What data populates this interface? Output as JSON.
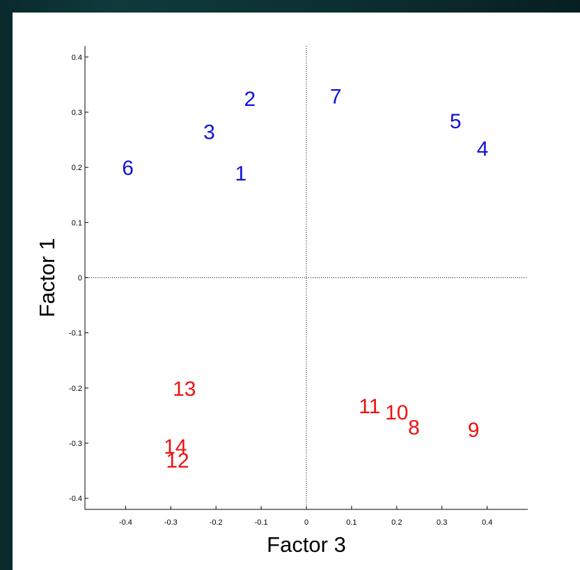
{
  "chart_data": {
    "type": "scatter",
    "title": "",
    "xlabel": "Factor 3",
    "ylabel": "Factor 1",
    "xlim": [
      -0.49,
      0.49
    ],
    "ylim": [
      -0.42,
      0.42
    ],
    "grid": false,
    "x_ticks": [
      -0.4,
      -0.3,
      -0.2,
      -0.1,
      0,
      0.1,
      0.2,
      0.3,
      0.4
    ],
    "x_tick_labels": [
      "-0.4",
      "-0.3",
      "-0.2",
      "-0.1",
      "0",
      "0.1",
      "0.2",
      "0.3",
      "0.4"
    ],
    "y_ticks": [
      -0.4,
      -0.3,
      -0.2,
      -0.1,
      0,
      0.1,
      0.2,
      0.3,
      0.4
    ],
    "y_tick_labels": [
      "-0.4",
      "-0.3",
      "-0.2",
      "-0.1",
      "0",
      "0.1",
      "0.2",
      "0.3",
      "0.4"
    ],
    "reference_lines": {
      "x": 0,
      "y": 0,
      "style": "dotted"
    },
    "series": [
      {
        "color": "#1010dd",
        "points": [
          {
            "label": "1",
            "x": -0.145,
            "y": 0.19
          },
          {
            "label": "2",
            "x": -0.125,
            "y": 0.325
          },
          {
            "label": "3",
            "x": -0.215,
            "y": 0.265
          },
          {
            "label": "4",
            "x": 0.39,
            "y": 0.235
          },
          {
            "label": "5",
            "x": 0.33,
            "y": 0.285
          },
          {
            "label": "6",
            "x": -0.395,
            "y": 0.2
          },
          {
            "label": "7",
            "x": 0.065,
            "y": 0.33
          }
        ]
      },
      {
        "color": "#ee1111",
        "points": [
          {
            "label": "8",
            "x": 0.238,
            "y": -0.27
          },
          {
            "label": "9",
            "x": 0.37,
            "y": -0.275
          },
          {
            "label": "10",
            "x": 0.2,
            "y": -0.243
          },
          {
            "label": "11",
            "x": 0.14,
            "y": -0.232
          },
          {
            "label": "12",
            "x": -0.285,
            "y": -0.33
          },
          {
            "label": "13",
            "x": -0.27,
            "y": -0.2
          },
          {
            "label": "14",
            "x": -0.29,
            "y": -0.305
          }
        ]
      }
    ]
  }
}
